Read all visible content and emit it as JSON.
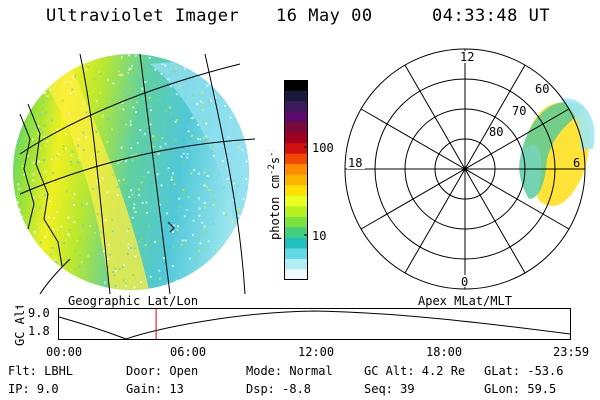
{
  "header": {
    "title": "Ultraviolet Imager",
    "date": "16 May 00",
    "time": "04:33:48 UT"
  },
  "colorbar": {
    "label": "photon cm",
    "label_exp1": "-2",
    "label_s": "s",
    "label_exp2": "-1",
    "tick_high": "100",
    "tick_low": "10",
    "colors": [
      "#000000",
      "#1a1a3a",
      "#3a1a5a",
      "#5a0a6a",
      "#7a0a3a",
      "#a00020",
      "#d01010",
      "#f04a00",
      "#ff8c00",
      "#ffb400",
      "#ffe000",
      "#e8ff20",
      "#b8f020",
      "#7ce040",
      "#40d080",
      "#20c0c0",
      "#60d8e8",
      "#b0eef5",
      "#f0f8ff"
    ]
  },
  "polar": {
    "label_top": "12",
    "label_bottom": "0",
    "label_left": "18",
    "label_right": "6",
    "ring_60": "60",
    "ring_70": "70",
    "ring_80": "80"
  },
  "labels": {
    "geographic": "Geographic Lat/Lon",
    "apex": "Apex MLat/MLT"
  },
  "timeline": {
    "ylabel": "GC Alt",
    "ytick_high": "9.0",
    "ytick_low": "1.8",
    "xticks": [
      "00:00",
      "06:00",
      "12:00",
      "18:00",
      "23:59"
    ],
    "marker_fraction": 0.19
  },
  "status": {
    "filter": "Flt: LBHL",
    "ip": "IP:  9.0",
    "door": "Door: Open",
    "gain": "Gain: 13",
    "mode": "Mode: Normal",
    "dsp": "Dsp:    -8.8",
    "gcalt": "GC Alt: 4.2 Re",
    "seq": "Seq: 39",
    "glat": "GLat:  -53.6",
    "glon": "GLon:  59.5"
  }
}
